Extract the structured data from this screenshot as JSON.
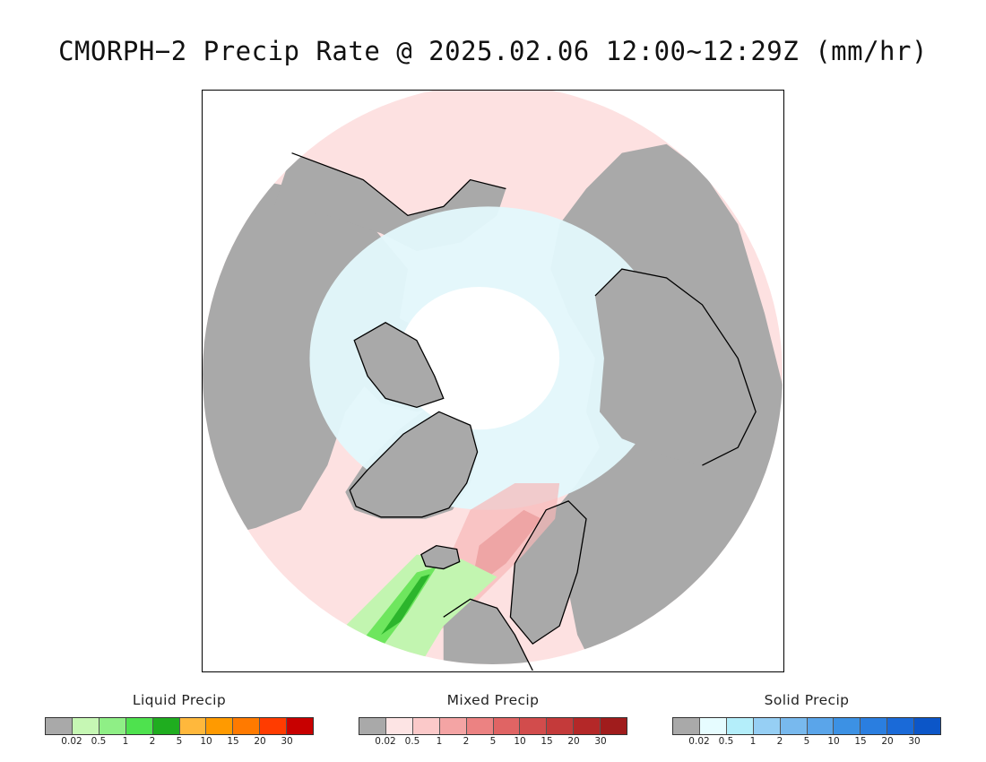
{
  "title": "CMORPH−2 Precip Rate @ 2025.02.06 12:00~12:29Z (mm/hr)",
  "map": {
    "projection": "north-polar-stereographic",
    "colors": {
      "land_no_precip": "#a9a9a9",
      "ocean_no_precip": "#ffffff",
      "coastline": "#000000",
      "mixed_light": "#fde1e1",
      "mixed_mid": "#f6b8b8",
      "mixed_heavy": "#e38686",
      "solid_light": "#e3f8fc",
      "solid_mid": "#c3eef8",
      "liquid_light": "#c2f5b0",
      "liquid_mid": "#6ee65e",
      "liquid_heavy": "#2cb52c"
    }
  },
  "legends": [
    {
      "title": "Liquid Precip",
      "colors": [
        "#a9a9a9",
        "#c6f7b4",
        "#8fef86",
        "#4ee24e",
        "#1fad1f",
        "#ffb83c",
        "#ff9a00",
        "#ff7a00",
        "#ff3c00",
        "#c80000"
      ],
      "ticks": [
        "0.02",
        "0.5",
        "1",
        "2",
        "5",
        "10",
        "15",
        "20",
        "30"
      ]
    },
    {
      "title": "Mixed Precip",
      "colors": [
        "#a9a9a9",
        "#fde4e4",
        "#fbc9c9",
        "#f4a4a4",
        "#ec8282",
        "#e06464",
        "#d24c4c",
        "#c43a3a",
        "#b42828",
        "#a01c1c"
      ],
      "ticks": [
        "0.02",
        "0.5",
        "1",
        "2",
        "5",
        "10",
        "15",
        "20",
        "30"
      ]
    },
    {
      "title": "Solid Precip",
      "colors": [
        "#a9a9a9",
        "#e6fcff",
        "#b4eefa",
        "#96cff4",
        "#78b9ee",
        "#5aa5ea",
        "#3c91e4",
        "#2a7ee0",
        "#1a6ad8",
        "#0c56c8"
      ],
      "ticks": [
        "0.02",
        "0.5",
        "1",
        "2",
        "5",
        "10",
        "15",
        "20",
        "30"
      ]
    }
  ]
}
